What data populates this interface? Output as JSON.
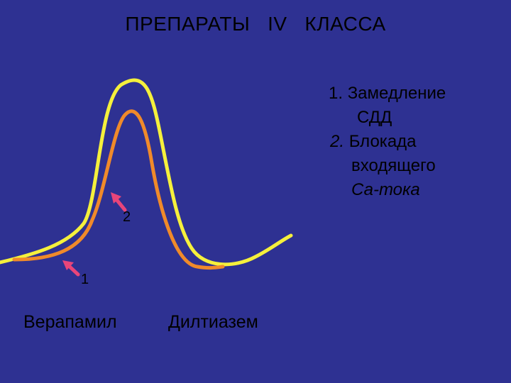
{
  "slide": {
    "title": "ПРЕПАРАТЫ   IV   КЛАССА",
    "mechanisms": [
      {
        "number": "1.",
        "lines": [
          "Замедление",
          "СДД"
        ]
      },
      {
        "number": "2.",
        "lines": [
          "Блокада",
          "входящего",
          "Са-тока"
        ]
      }
    ],
    "arrows": [
      {
        "label": "1",
        "color": "#e8457a"
      },
      {
        "label": "2",
        "color": "#e8457a"
      }
    ],
    "drugs": [
      "Верапамил",
      "Дилтиазем"
    ],
    "colors": {
      "background": "#2e3192",
      "curve_outer": "#f5f03c",
      "curve_inner": "#f08a2a",
      "arrow": "#e8457a"
    }
  }
}
